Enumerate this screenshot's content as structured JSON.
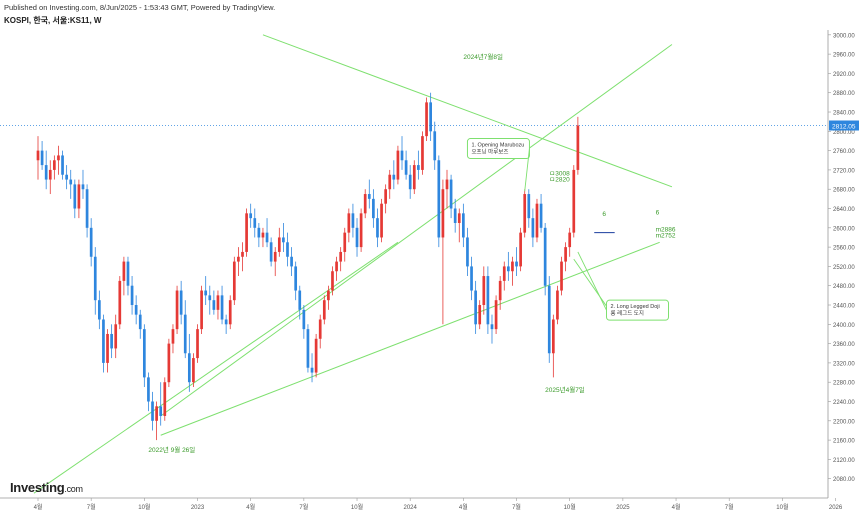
{
  "header": {
    "published": "Published on Investing.com, 8/Jun/2025 - 1:53:43 GMT, Powered by TradingView.",
    "symbol": "KOSPI, 한국, 서울:KS11, W"
  },
  "logo": {
    "main": "Investing",
    "suffix": ".com"
  },
  "colors": {
    "up": "#e53935",
    "down": "#2e86de",
    "trend": "#7ee06f",
    "annotation": "#3a9a2a",
    "current": "#2e86de"
  },
  "chart_data": {
    "type": "candlestick",
    "timeframe": "W",
    "ylim": [
      2040,
      3010
    ],
    "y_ticks": [
      2080,
      2120,
      2160,
      2200,
      2240,
      2280,
      2320,
      2360,
      2400,
      2440,
      2480,
      2520,
      2560,
      2600,
      2640,
      2680,
      2720,
      2760,
      2800,
      2840,
      2880,
      2920,
      2960,
      3000
    ],
    "y_tick_labels": [
      "2080.00",
      "2120.00",
      "2160.00",
      "2200.00",
      "2240.00",
      "2280.00",
      "2320.00",
      "2360.00",
      "2400.00",
      "2440.00",
      "2480.00",
      "2520.00",
      "2560.00",
      "2600.00",
      "2640.00",
      "2680.00",
      "2720.00",
      "2760.00",
      "2800.00",
      "2840.00",
      "2880.00",
      "2920.00",
      "2960.00",
      "3000.00"
    ],
    "x_ticks": [
      "4월",
      "7월",
      "10월",
      "2023",
      "4월",
      "7월",
      "10월",
      "2024",
      "4월",
      "7월",
      "10월",
      "2025",
      "4월",
      "7월",
      "10월",
      "2026"
    ],
    "x_tick_weeks": [
      0,
      13,
      26,
      39,
      52,
      65,
      78,
      91,
      104,
      117,
      130,
      143,
      156,
      169,
      182,
      195
    ],
    "current_price": 2812.05,
    "current_label": "2812.05",
    "candles": [
      [
        2740,
        2790,
        2700,
        2760
      ],
      [
        2760,
        2780,
        2720,
        2730
      ],
      [
        2730,
        2760,
        2680,
        2700
      ],
      [
        2700,
        2740,
        2670,
        2720
      ],
      [
        2720,
        2750,
        2700,
        2740
      ],
      [
        2740,
        2770,
        2710,
        2750
      ],
      [
        2750,
        2760,
        2700,
        2710
      ],
      [
        2710,
        2730,
        2680,
        2700
      ],
      [
        2700,
        2720,
        2660,
        2690
      ],
      [
        2690,
        2700,
        2620,
        2640
      ],
      [
        2640,
        2700,
        2620,
        2690
      ],
      [
        2690,
        2720,
        2660,
        2680
      ],
      [
        2680,
        2690,
        2580,
        2600
      ],
      [
        2600,
        2620,
        2520,
        2540
      ],
      [
        2540,
        2560,
        2420,
        2450
      ],
      [
        2450,
        2470,
        2390,
        2410
      ],
      [
        2410,
        2420,
        2300,
        2320
      ],
      [
        2320,
        2390,
        2300,
        2380
      ],
      [
        2380,
        2400,
        2330,
        2350
      ],
      [
        2350,
        2420,
        2330,
        2400
      ],
      [
        2400,
        2500,
        2390,
        2490
      ],
      [
        2490,
        2540,
        2460,
        2530
      ],
      [
        2530,
        2540,
        2460,
        2480
      ],
      [
        2480,
        2500,
        2420,
        2440
      ],
      [
        2440,
        2460,
        2400,
        2420
      ],
      [
        2420,
        2430,
        2370,
        2390
      ],
      [
        2390,
        2400,
        2270,
        2290
      ],
      [
        2290,
        2300,
        2220,
        2240
      ],
      [
        2240,
        2260,
        2180,
        2200
      ],
      [
        2200,
        2240,
        2160,
        2230
      ],
      [
        2230,
        2280,
        2190,
        2210
      ],
      [
        2210,
        2290,
        2200,
        2280
      ],
      [
        2280,
        2370,
        2270,
        2360
      ],
      [
        2360,
        2400,
        2340,
        2390
      ],
      [
        2390,
        2480,
        2380,
        2470
      ],
      [
        2470,
        2490,
        2400,
        2420
      ],
      [
        2420,
        2450,
        2330,
        2340
      ],
      [
        2340,
        2380,
        2260,
        2280
      ],
      [
        2280,
        2340,
        2270,
        2330
      ],
      [
        2330,
        2400,
        2320,
        2390
      ],
      [
        2390,
        2480,
        2380,
        2470
      ],
      [
        2470,
        2500,
        2440,
        2460
      ],
      [
        2460,
        2480,
        2420,
        2450
      ],
      [
        2450,
        2470,
        2420,
        2430
      ],
      [
        2430,
        2470,
        2410,
        2460
      ],
      [
        2460,
        2480,
        2400,
        2410
      ],
      [
        2410,
        2420,
        2380,
        2400
      ],
      [
        2400,
        2460,
        2390,
        2450
      ],
      [
        2450,
        2540,
        2440,
        2530
      ],
      [
        2530,
        2560,
        2500,
        2540
      ],
      [
        2540,
        2570,
        2510,
        2550
      ],
      [
        2550,
        2640,
        2540,
        2630
      ],
      [
        2630,
        2650,
        2600,
        2620
      ],
      [
        2620,
        2640,
        2580,
        2600
      ],
      [
        2600,
        2610,
        2560,
        2580
      ],
      [
        2580,
        2600,
        2560,
        2590
      ],
      [
        2590,
        2620,
        2560,
        2570
      ],
      [
        2570,
        2580,
        2520,
        2530
      ],
      [
        2530,
        2560,
        2500,
        2550
      ],
      [
        2550,
        2600,
        2540,
        2580
      ],
      [
        2580,
        2610,
        2550,
        2570
      ],
      [
        2570,
        2590,
        2520,
        2540
      ],
      [
        2540,
        2560,
        2500,
        2520
      ],
      [
        2520,
        2530,
        2450,
        2470
      ],
      [
        2470,
        2480,
        2410,
        2430
      ],
      [
        2430,
        2440,
        2370,
        2390
      ],
      [
        2390,
        2400,
        2300,
        2310
      ],
      [
        2310,
        2340,
        2280,
        2300
      ],
      [
        2300,
        2380,
        2290,
        2370
      ],
      [
        2370,
        2420,
        2350,
        2410
      ],
      [
        2410,
        2460,
        2400,
        2450
      ],
      [
        2450,
        2480,
        2430,
        2470
      ],
      [
        2470,
        2520,
        2460,
        2510
      ],
      [
        2510,
        2540,
        2490,
        2530
      ],
      [
        2530,
        2560,
        2510,
        2550
      ],
      [
        2550,
        2600,
        2530,
        2590
      ],
      [
        2590,
        2640,
        2570,
        2630
      ],
      [
        2630,
        2650,
        2580,
        2600
      ],
      [
        2600,
        2620,
        2540,
        2560
      ],
      [
        2560,
        2640,
        2550,
        2630
      ],
      [
        2630,
        2680,
        2620,
        2670
      ],
      [
        2670,
        2700,
        2640,
        2660
      ],
      [
        2660,
        2680,
        2600,
        2620
      ],
      [
        2620,
        2640,
        2560,
        2580
      ],
      [
        2580,
        2660,
        2570,
        2650
      ],
      [
        2650,
        2690,
        2630,
        2680
      ],
      [
        2680,
        2720,
        2660,
        2710
      ],
      [
        2710,
        2740,
        2680,
        2700
      ],
      [
        2700,
        2770,
        2690,
        2760
      ],
      [
        2760,
        2790,
        2720,
        2740
      ],
      [
        2740,
        2760,
        2700,
        2710
      ],
      [
        2710,
        2730,
        2660,
        2680
      ],
      [
        2680,
        2740,
        2670,
        2730
      ],
      [
        2730,
        2760,
        2700,
        2720
      ],
      [
        2720,
        2800,
        2710,
        2790
      ],
      [
        2790,
        2870,
        2780,
        2860
      ],
      [
        2860,
        2880,
        2780,
        2800
      ],
      [
        2800,
        2820,
        2720,
        2740
      ],
      [
        2740,
        2750,
        2560,
        2580
      ],
      [
        2580,
        2700,
        2400,
        2680
      ],
      [
        2680,
        2720,
        2640,
        2700
      ],
      [
        2700,
        2710,
        2620,
        2640
      ],
      [
        2640,
        2660,
        2590,
        2610
      ],
      [
        2610,
        2640,
        2570,
        2630
      ],
      [
        2630,
        2650,
        2560,
        2580
      ],
      [
        2580,
        2600,
        2500,
        2520
      ],
      [
        2520,
        2540,
        2450,
        2470
      ],
      [
        2470,
        2490,
        2380,
        2400
      ],
      [
        2400,
        2450,
        2390,
        2440
      ],
      [
        2440,
        2520,
        2420,
        2500
      ],
      [
        2500,
        2520,
        2380,
        2400
      ],
      [
        2400,
        2420,
        2360,
        2390
      ],
      [
        2390,
        2460,
        2380,
        2450
      ],
      [
        2450,
        2500,
        2430,
        2490
      ],
      [
        2490,
        2530,
        2470,
        2520
      ],
      [
        2520,
        2550,
        2490,
        2510
      ],
      [
        2510,
        2540,
        2480,
        2530
      ],
      [
        2530,
        2560,
        2500,
        2520
      ],
      [
        2520,
        2600,
        2510,
        2590
      ],
      [
        2590,
        2680,
        2580,
        2670
      ],
      [
        2670,
        2680,
        2600,
        2620
      ],
      [
        2620,
        2640,
        2560,
        2580
      ],
      [
        2580,
        2660,
        2570,
        2650
      ],
      [
        2650,
        2670,
        2590,
        2600
      ],
      [
        2600,
        2610,
        2460,
        2480
      ],
      [
        2480,
        2500,
        2320,
        2340
      ],
      [
        2340,
        2420,
        2290,
        2410
      ],
      [
        2410,
        2480,
        2400,
        2470
      ],
      [
        2470,
        2540,
        2460,
        2530
      ],
      [
        2530,
        2570,
        2510,
        2560
      ],
      [
        2560,
        2600,
        2540,
        2590
      ],
      [
        2590,
        2730,
        2580,
        2720
      ],
      [
        2720,
        2830,
        2710,
        2812.05
      ]
    ],
    "trendlines": [
      {
        "from": [
          -1,
          2050
        ],
        "to": [
          88,
          2570
        ]
      },
      {
        "from": [
          30,
          2170
        ],
        "to": [
          152,
          2570
        ]
      },
      {
        "from": [
          55,
          3000
        ],
        "to": [
          155,
          2685
        ]
      },
      {
        "from": [
          30,
          2210
        ],
        "to": [
          155,
          2980
        ]
      }
    ],
    "annotations": [
      {
        "text": "2024년7월8일",
        "x": 104,
        "y": 2950
      },
      {
        "text": "2022년 9월 26일",
        "x": 27,
        "y": 2135
      },
      {
        "text": "2025년4월7일",
        "x": 124,
        "y": 2260
      },
      {
        "text": "6",
        "x": 138,
        "y": 2625
      },
      {
        "text": "6",
        "x": 151,
        "y": 2628
      },
      {
        "text": "ㅁ3008",
        "x": 125,
        "y": 2708
      },
      {
        "text": "ㅁ2820",
        "x": 125,
        "y": 2696
      },
      {
        "text": "m2886",
        "x": 151,
        "y": 2592
      },
      {
        "text": "m2752",
        "x": 151,
        "y": 2580
      }
    ],
    "callouts": [
      {
        "title": "1. Opening Marubozu",
        "subtitle": "오프닝 마루보즈",
        "x": 105,
        "y": 2785
      },
      {
        "title": "2. Long Legged Doji",
        "subtitle": "롱 레그드 도지",
        "x": 139,
        "y": 2450
      }
    ],
    "grid": false,
    "legend": "none"
  }
}
